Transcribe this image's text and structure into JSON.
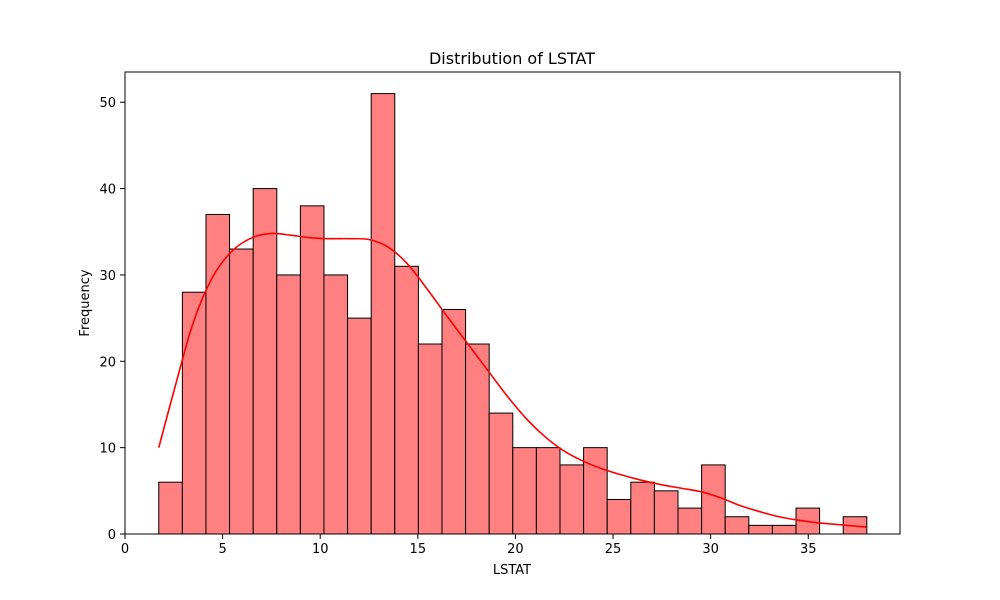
{
  "chart_data": {
    "type": "bar",
    "title": "Distribution of LSTAT",
    "xlabel": "LSTAT",
    "ylabel": "Frequency",
    "xlim": [
      0,
      39.7
    ],
    "ylim": [
      0,
      53.5
    ],
    "xticks": [
      0,
      5,
      10,
      15,
      20,
      25,
      30,
      35
    ],
    "yticks": [
      0,
      10,
      20,
      30,
      40,
      50
    ],
    "bins": {
      "start": 1.73,
      "width": 1.209,
      "counts": [
        6,
        28,
        37,
        33,
        40,
        30,
        38,
        30,
        25,
        51,
        31,
        22,
        26,
        22,
        14,
        10,
        10,
        8,
        10,
        4,
        6,
        5,
        3,
        8,
        2,
        1,
        1,
        3,
        0,
        2
      ]
    },
    "kde": {
      "x": [
        1.73,
        2.5,
        3.5,
        4.5,
        5.5,
        6.5,
        7.5,
        8.5,
        9.5,
        10.5,
        11.5,
        12.5,
        13.5,
        14.5,
        15.5,
        16.5,
        17.5,
        18.5,
        19.5,
        20.5,
        21.5,
        22.5,
        23.5,
        24.5,
        25.5,
        26.5,
        27.5,
        28.5,
        29.5,
        30.5,
        31.5,
        32.5,
        33.5,
        34.5,
        35.5,
        36.5,
        37.97
      ],
      "y": [
        10,
        16.5,
        24.5,
        29.8,
        32.8,
        34.3,
        34.8,
        34.6,
        34.3,
        34.2,
        34.2,
        34.1,
        33.2,
        31.2,
        28.3,
        25.2,
        22.2,
        19.2,
        16.2,
        13.5,
        11.3,
        9.6,
        8.4,
        7.5,
        6.8,
        6.2,
        5.7,
        5.3,
        4.9,
        4.2,
        3.3,
        2.6,
        2.0,
        1.6,
        1.3,
        1.1,
        0.8
      ]
    },
    "colors": {
      "bar_fill": "#ff8080",
      "bar_edge": "#000000",
      "kde_line": "#ff0000"
    },
    "grid": false
  }
}
